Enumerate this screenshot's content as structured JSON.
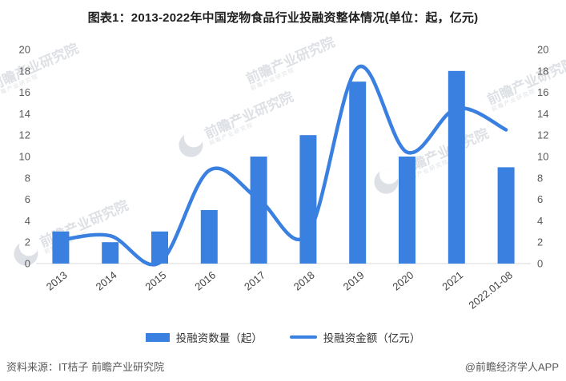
{
  "title": "图表1：2013-2022年中国宠物食品行业投融资整体情况(单位：起，亿元)",
  "colors": {
    "accent": "#3A80E1",
    "axis_label": "#595959",
    "tick_label": "#454545",
    "axis_line": "#D9D9D9",
    "title": "#1F1F1F",
    "footer": "#595959",
    "watermark": "#D5D9DE"
  },
  "chart_data": {
    "type": "combo",
    "categories": [
      "2013",
      "2014",
      "2015",
      "2016",
      "2017",
      "2018",
      "2019",
      "2020",
      "2021",
      "2022.01-08"
    ],
    "series": [
      {
        "name": "投融资数量（起）",
        "type": "bar",
        "axis": "left",
        "values": [
          3,
          2,
          3,
          5,
          10,
          12,
          17,
          10,
          18,
          9
        ]
      },
      {
        "name": "投融资金额（亿元）",
        "type": "line",
        "axis": "right",
        "values": [
          2.2,
          2.6,
          0.1,
          8.7,
          6.0,
          2.8,
          18.3,
          10.4,
          14.5,
          12.5
        ]
      }
    ],
    "title": "图表1：2013-2022年中国宠物食品行业投融资整体情况(单位：起，亿元)",
    "xlabel": "",
    "ylabel_left": "投融资数量（起）",
    "ylabel_right": "投融资金额（亿元）",
    "ylim_left": [
      0,
      20
    ],
    "ylim_right": [
      0,
      20
    ],
    "y_ticks": [
      0,
      2,
      4,
      6,
      8,
      10,
      12,
      14,
      16,
      18,
      20
    ],
    "grid": false,
    "legend_position": "bottom"
  },
  "legend": {
    "bar_label": "投融资数量（起）",
    "line_label": "投融资金额（亿元）"
  },
  "footer": {
    "source": "资料来源：IT桔子 前瞻产业研究院",
    "credit": "@前瞻经济学人APP"
  },
  "watermark": {
    "text": "前瞻产业研究院"
  }
}
